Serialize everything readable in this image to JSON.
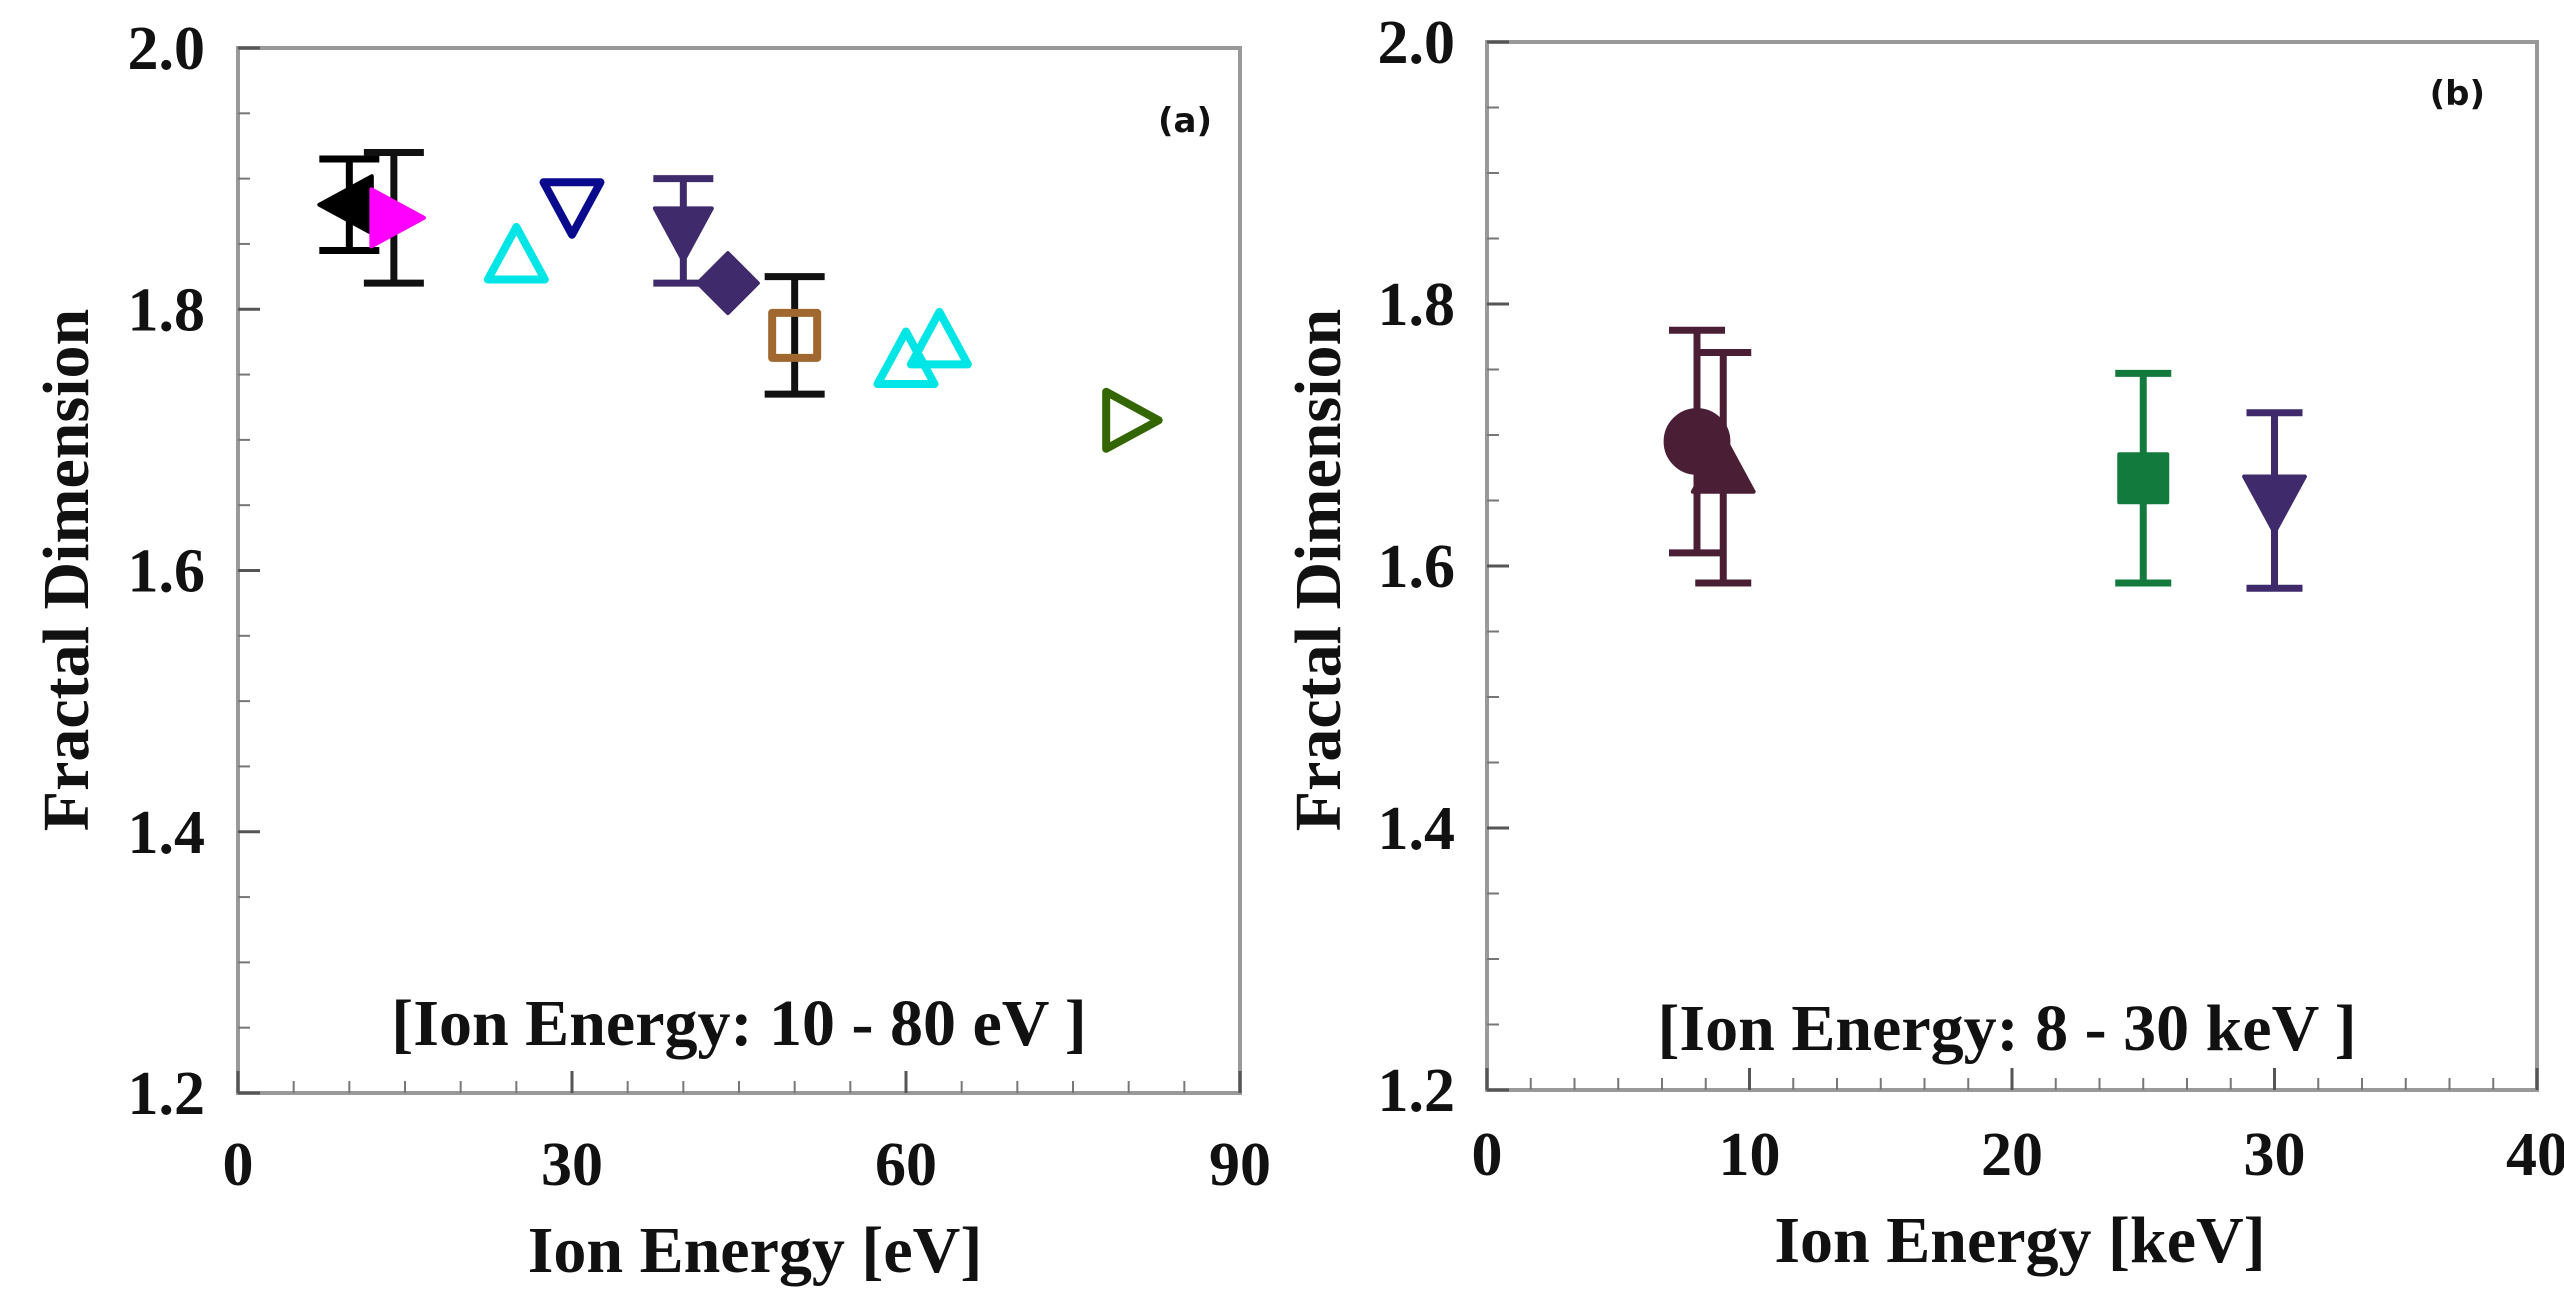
{
  "chart_data": [
    {
      "id": "a",
      "type": "scatter",
      "panel_label": "(a)",
      "annotation": "[Ion Energy: 10 - 80 eV ]",
      "xlabel": "Ion Energy [eV]",
      "ylabel": "Fractal Dimension",
      "xlim": [
        0,
        90
      ],
      "ylim": [
        1.2,
        2.0
      ],
      "xticks": [
        0,
        30,
        60,
        90
      ],
      "yticks": [
        1.2,
        1.4,
        1.6,
        1.8,
        2.0
      ],
      "xtick_labels": [
        "0",
        "30",
        "60",
        "90"
      ],
      "ytick_labels": [
        "1.2",
        "1.4",
        "1.6",
        "1.8",
        "2.0"
      ],
      "series": [
        {
          "name": "s1",
          "marker": "triangle-left",
          "filled": true,
          "color": "#000000",
          "x": 10,
          "y": 1.88,
          "err": 0.035
        },
        {
          "name": "s2",
          "marker": "triangle-right",
          "filled": true,
          "color": "#ff00ff",
          "x": 14,
          "y": 1.87,
          "err": 0.05
        },
        {
          "name": "s3",
          "marker": "triangle-up",
          "filled": false,
          "color": "#00e5e5",
          "x": 25,
          "y": 1.84
        },
        {
          "name": "s4",
          "marker": "triangle-down",
          "filled": false,
          "color": "#0a0a8c",
          "x": 30,
          "y": 1.88
        },
        {
          "name": "s5",
          "marker": "triangle-down",
          "filled": true,
          "color": "#3f2a6b",
          "x": 40,
          "y": 1.86,
          "err": 0.04
        },
        {
          "name": "s6",
          "marker": "diamond",
          "filled": true,
          "color": "#3f2a6b",
          "x": 44,
          "y": 1.82
        },
        {
          "name": "s7",
          "marker": "square",
          "filled": false,
          "color": "#a0682e",
          "x": 50,
          "y": 1.78,
          "err": 0.045
        },
        {
          "name": "s8",
          "marker": "triangle-up",
          "filled": false,
          "color": "#00e5e5",
          "x": 60,
          "y": 1.76
        },
        {
          "name": "s9",
          "marker": "triangle-up",
          "filled": false,
          "color": "#00e5e5",
          "x": 63,
          "y": 1.775
        },
        {
          "name": "s10",
          "marker": "triangle-right",
          "filled": false,
          "color": "#336600",
          "x": 80,
          "y": 1.715
        }
      ]
    },
    {
      "id": "b",
      "type": "scatter",
      "panel_label": "(b)",
      "annotation": "[Ion Energy: 8 - 30 keV ]",
      "xlabel": "Ion Energy [keV]",
      "ylabel": "Fractal Dimension",
      "xlim": [
        0,
        40
      ],
      "ylim": [
        1.2,
        2.0
      ],
      "xticks": [
        0,
        10,
        20,
        30,
        40
      ],
      "yticks": [
        1.2,
        1.4,
        1.6,
        1.8,
        2.0
      ],
      "xtick_labels": [
        "0",
        "10",
        "20",
        "30",
        "40"
      ],
      "ytick_labels": [
        "1.2",
        "1.4",
        "1.6",
        "1.8",
        "2.0"
      ],
      "series": [
        {
          "name": "s1",
          "marker": "circle",
          "filled": true,
          "color": "#4a1f36",
          "x": 8,
          "y": 1.695,
          "err": 0.085
        },
        {
          "name": "s2",
          "marker": "triangle-up",
          "filled": true,
          "color": "#4a1f36",
          "x": 9,
          "y": 1.675,
          "err": 0.088
        },
        {
          "name": "s3",
          "marker": "square",
          "filled": true,
          "color": "#137a3e",
          "x": 25,
          "y": 1.667,
          "err": 0.08
        },
        {
          "name": "s4",
          "marker": "triangle-down",
          "filled": true,
          "color": "#3f2a6b",
          "x": 30,
          "y": 1.65,
          "err": 0.067
        }
      ]
    }
  ]
}
